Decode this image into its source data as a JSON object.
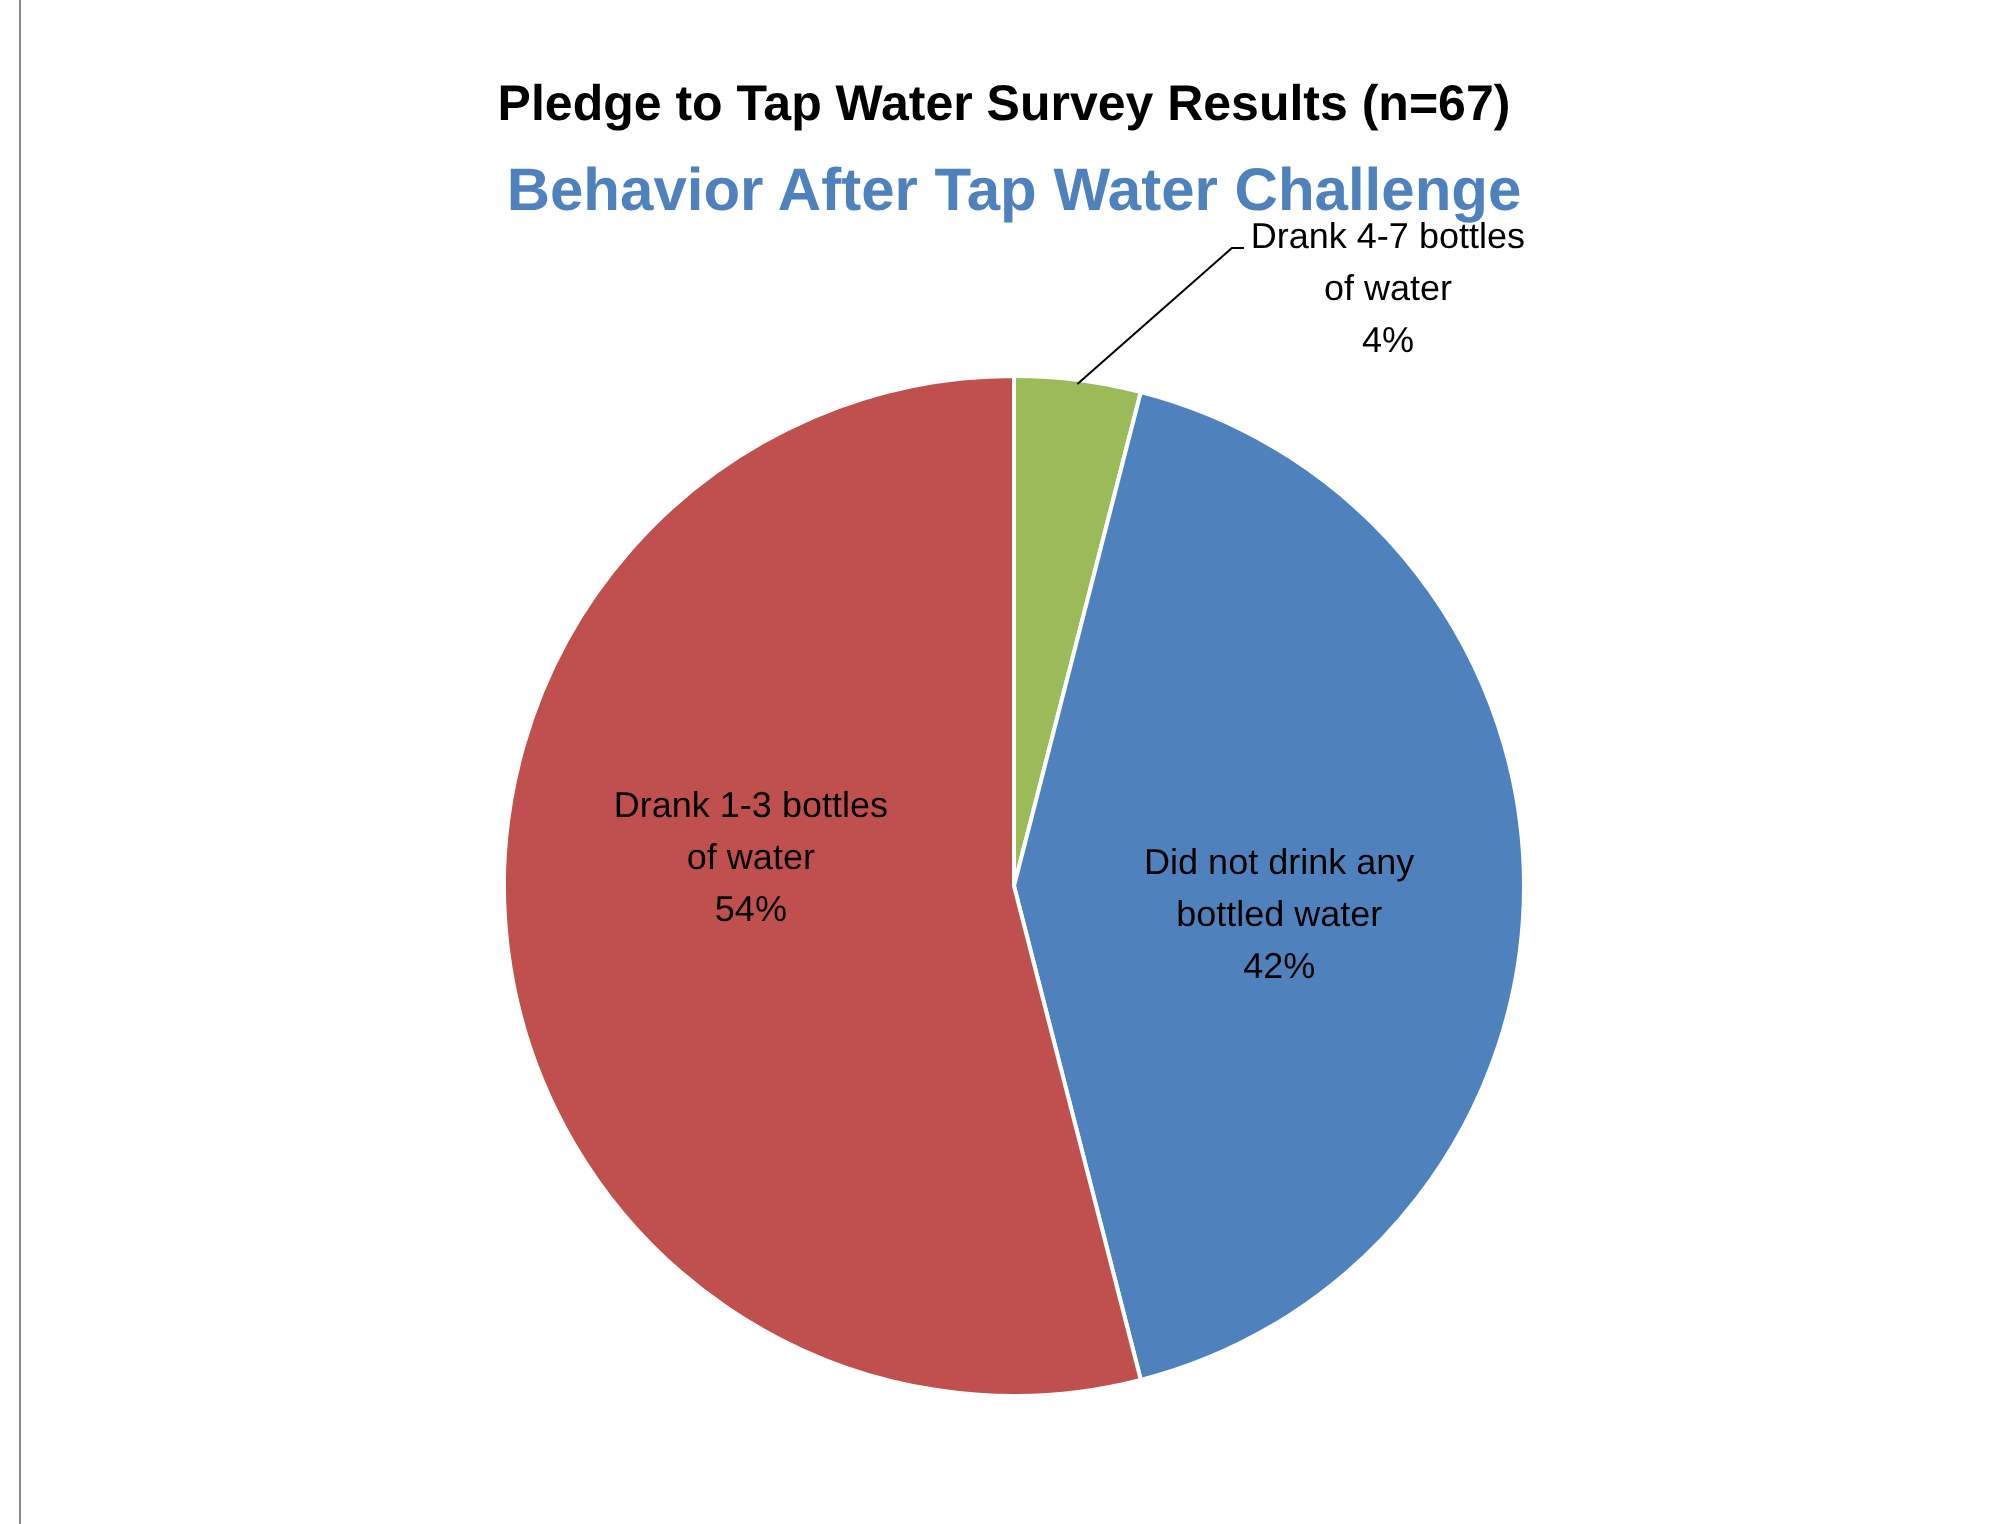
{
  "chart_data": {
    "type": "pie",
    "title": "Pledge to Tap Water Survey Results (n=67)",
    "subtitle": "Behavior After Tap Water Challenge",
    "categories": [
      "Drank 4-7 bottles of water",
      "Did not drink any bottled water",
      "Drank 1-3 bottles of water"
    ],
    "values": [
      4,
      42,
      54
    ],
    "colors": [
      "#9bbb59",
      "#4f81bd",
      "#c0504d"
    ],
    "value_labels": [
      "4%",
      "42%",
      "54%"
    ],
    "legend": false
  }
}
